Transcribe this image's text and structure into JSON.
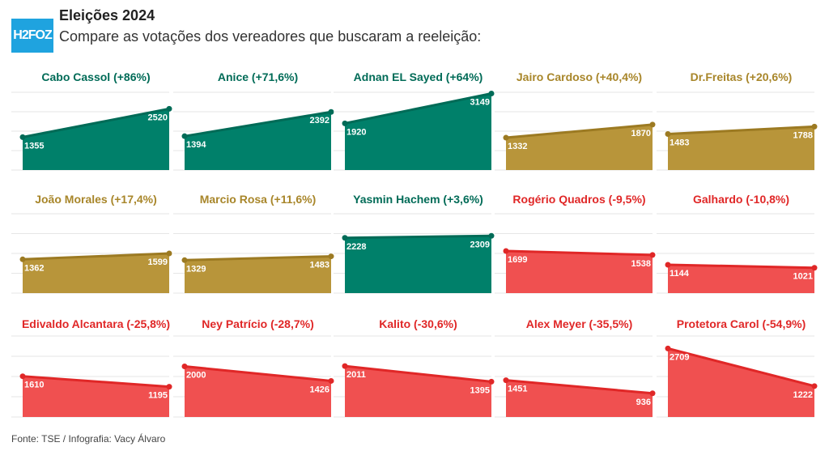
{
  "header": {
    "logo": "H2FOZ",
    "title": "Eleições 2024",
    "subtitle": "Compare as votações dos vereadores que buscaram a reeleição:"
  },
  "footer": "Fonte: TSE / Infografia: Vacy Álvaro",
  "colors": {
    "up": "#00806a",
    "mid": "#b8953a",
    "down": "#f05050"
  },
  "chart_data": [
    {
      "type": "area",
      "title": "Cabo Cassol (+86%)",
      "color": "green",
      "values": [
        1355,
        2520
      ]
    },
    {
      "type": "area",
      "title": "Anice (+71,6%)",
      "color": "green",
      "values": [
        1394,
        2392
      ]
    },
    {
      "type": "area",
      "title": "Adnan EL Sayed (+64%)",
      "color": "green",
      "values": [
        1920,
        3149
      ]
    },
    {
      "type": "area",
      "title": "Jairo Cardoso (+40,4%)",
      "color": "gold",
      "values": [
        1332,
        1870
      ]
    },
    {
      "type": "area",
      "title": "Dr.Freitas (+20,6%)",
      "color": "gold",
      "values": [
        1483,
        1788
      ]
    },
    {
      "type": "area",
      "title": "João Morales (+17,4%)",
      "color": "gold",
      "values": [
        1362,
        1599
      ]
    },
    {
      "type": "area",
      "title": "Marcio Rosa (+11,6%)",
      "color": "gold",
      "values": [
        1329,
        1483
      ]
    },
    {
      "type": "area",
      "title": "Yasmin Hachem (+3,6%)",
      "color": "green",
      "values": [
        2228,
        2309
      ]
    },
    {
      "type": "area",
      "title": "Rogério Quadros (-9,5%)",
      "color": "red",
      "values": [
        1699,
        1538
      ]
    },
    {
      "type": "area",
      "title": "Galhardo (-10,8%)",
      "color": "red",
      "values": [
        1144,
        1021
      ]
    },
    {
      "type": "area",
      "title": "Edivaldo Alcantara (-25,8%)",
      "color": "red",
      "values": [
        1610,
        1195
      ]
    },
    {
      "type": "area",
      "title": "Ney Patrício (-28,7%)",
      "color": "red",
      "values": [
        2000,
        1426
      ]
    },
    {
      "type": "area",
      "title": "Kalito (-30,6%)",
      "color": "red",
      "values": [
        2011,
        1395
      ]
    },
    {
      "type": "area",
      "title": "Alex Meyer (-35,5%)",
      "color": "red",
      "values": [
        1451,
        936
      ]
    },
    {
      "type": "area",
      "title": "Protetora Carol (-54,9%)",
      "color": "red",
      "values": [
        2709,
        1222
      ]
    }
  ]
}
